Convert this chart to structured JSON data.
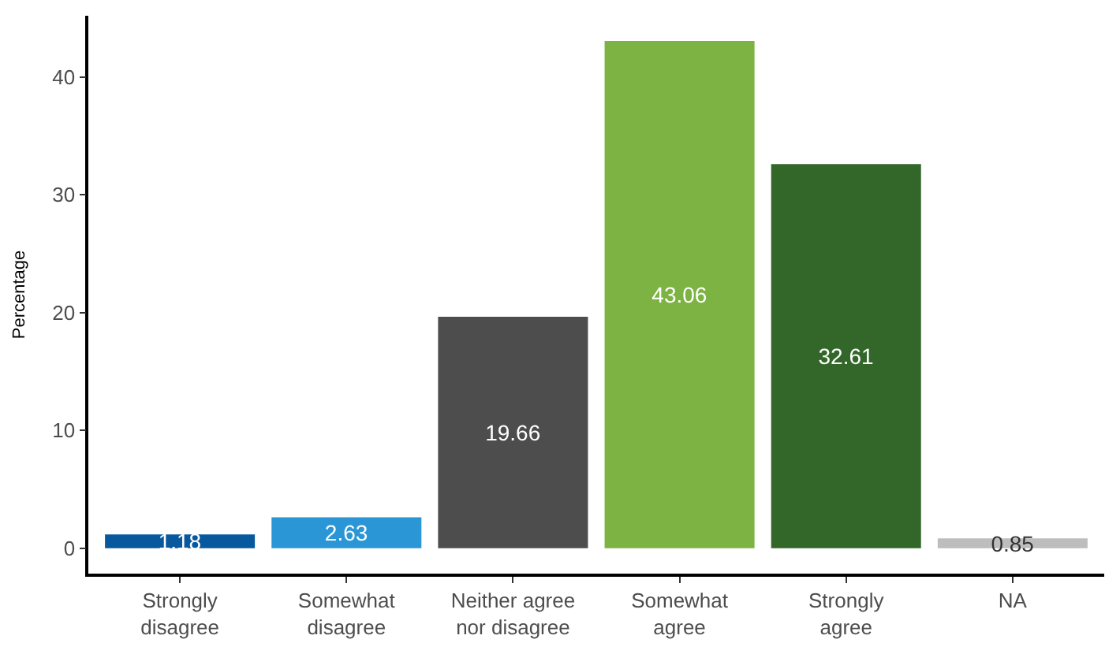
{
  "chart_data": {
    "type": "bar",
    "ylabel": "Percentage",
    "categories": [
      "Strongly\ndisagree",
      "Somewhat\ndisagree",
      "Neither agree\nnor disagree",
      "Somewhat\nagree",
      "Strongly\nagree",
      "NA"
    ],
    "values": [
      1.18,
      2.63,
      19.66,
      43.06,
      32.61,
      0.85
    ],
    "colors": [
      "#08589e",
      "#2b96d6",
      "#4d4d4d",
      "#7cb342",
      "#33672a",
      "#bdbdbd"
    ],
    "ylim": [
      -2.15,
      45.2
    ],
    "yticks": [
      0,
      10,
      20,
      30,
      40
    ],
    "legend": false,
    "data_labels": true
  }
}
